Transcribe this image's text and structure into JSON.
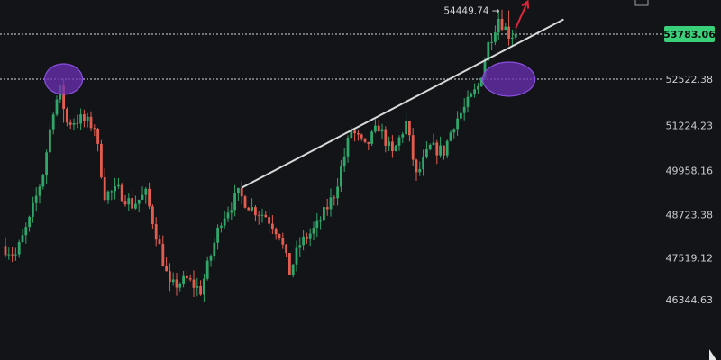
{
  "colors": {
    "background": "#131418",
    "up": "#2fa66a",
    "down": "#e35d4f",
    "grid": "#ffffff",
    "trendline": "#d9d9d9",
    "highlight": "#6b2fb3",
    "highlight_stroke": "#8a4fe0",
    "arrow": "#e0243b",
    "price_label_bg": "#3ad07a"
  },
  "chart_data": {
    "type": "candlestick",
    "y_axis": {
      "position": "right",
      "ticks": [
        53783.06,
        52522.38,
        51224.23,
        49958.16,
        48723.38,
        47519.12,
        46344.63
      ],
      "tick_labels": [
        "53783.06",
        "52522.38",
        "51224.23",
        "49958.16",
        "48723.38",
        "47519.12",
        "46344.63"
      ],
      "range": [
        45950,
        54900
      ]
    },
    "current_price": {
      "value": 53783.06,
      "label": "53783.06"
    },
    "high_marker": {
      "value": 54449.74,
      "label": "54449.74"
    },
    "horizontal_levels": [
      53783.06,
      52522.38
    ],
    "num_candles": 150,
    "last_close": 53783.06,
    "trendline": {
      "from": {
        "candle": 69,
        "price": 49480
      },
      "to": {
        "candle": 163,
        "price": 54200
      }
    },
    "highlights": [
      {
        "candle": 17,
        "price": 52522.38
      },
      {
        "candle": 147,
        "price": 52522.38
      }
    ],
    "arrow": {
      "from": {
        "candle": 149,
        "price": 53950
      },
      "to": {
        "candle": 152.5,
        "price": 54700
      }
    },
    "close_anchors": [
      [
        0,
        47850
      ],
      [
        4,
        47600
      ],
      [
        8,
        48550
      ],
      [
        12,
        49900
      ],
      [
        15,
        51700
      ],
      [
        17,
        52200
      ],
      [
        19,
        51300
      ],
      [
        23,
        51400
      ],
      [
        27,
        51200
      ],
      [
        30,
        49300
      ],
      [
        34,
        49400
      ],
      [
        38,
        49000
      ],
      [
        42,
        49300
      ],
      [
        45,
        48200
      ],
      [
        49,
        46700
      ],
      [
        54,
        46900
      ],
      [
        58,
        46600
      ],
      [
        61,
        47600
      ],
      [
        64,
        48600
      ],
      [
        69,
        49300
      ],
      [
        73,
        48900
      ],
      [
        77,
        48700
      ],
      [
        81,
        48200
      ],
      [
        84,
        47100
      ],
      [
        87,
        47900
      ],
      [
        92,
        48400
      ],
      [
        97,
        49300
      ],
      [
        102,
        51100
      ],
      [
        106,
        50600
      ],
      [
        110,
        51200
      ],
      [
        114,
        50400
      ],
      [
        118,
        51300
      ],
      [
        121,
        49800
      ],
      [
        125,
        50600
      ],
      [
        129,
        50500
      ],
      [
        132,
        51300
      ],
      [
        135,
        51700
      ],
      [
        139,
        52300
      ],
      [
        142,
        53500
      ],
      [
        145,
        54250
      ],
      [
        148,
        53783
      ]
    ]
  }
}
